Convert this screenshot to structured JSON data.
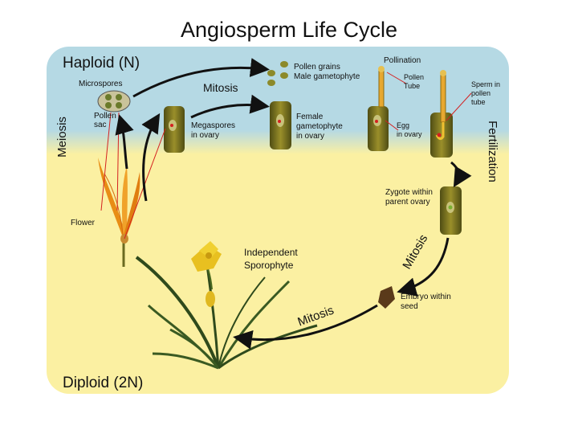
{
  "title": "Angiosperm Life Cycle",
  "zones": {
    "haploid": "Haploid (N)",
    "diploid": "Diploid (2N)"
  },
  "processes": {
    "meiosis": "Meiosis",
    "mitosis_top": "Mitosis",
    "fertilization": "Fertilization",
    "mitosis_right": "Mitosis",
    "mitosis_bottom": "Mitosis"
  },
  "labels": {
    "microspores": "Microspores",
    "pollen_sac_1": "Pollen",
    "pollen_sac_2": "sac",
    "megaspores_1": "Megaspores",
    "megaspores_2": "in ovary",
    "pollen_grains_1": "Pollen grains",
    "pollen_grains_2": "Male gametophyte",
    "female_1": "Female",
    "female_2": "gametophyte",
    "female_3": "in ovary",
    "pollination": "Pollination",
    "pollen_tube_1": "Pollen",
    "pollen_tube_2": "Tube",
    "egg_1": "Egg",
    "egg_2": "in ovary",
    "sperm_1": "Sperm in",
    "sperm_2": "pollen",
    "sperm_3": "tube",
    "zygote_1": "Zygote within",
    "zygote_2": "parent ovary",
    "embryo_1": "Embryo within",
    "embryo_2": "seed",
    "flower": "Flower",
    "sporophyte_1": "Independent",
    "sporophyte_2": "Sporophyte"
  },
  "colors": {
    "haploid_bg": "#b5d9e4",
    "diploid_bg": "#fbf0a2",
    "ovary_green": "#6b6a1e",
    "flower_orange": "#e89a1c",
    "pointer_red": "#d42020",
    "seed_brown": "#5a3a1a"
  }
}
